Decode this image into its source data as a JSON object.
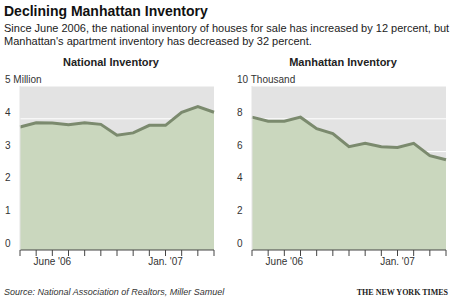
{
  "title": "Declining Manhattan Inventory",
  "subtitle": "Since June 2006, the national inventory of houses for sale has increased by 12 percent, but Manhattan's apartment inventory has decreased by 32 percent.",
  "source": "Source: National Association of Realtors, Miller Samuel",
  "credit": "THE NEW YORK TIMES",
  "chart_data": [
    {
      "type": "area",
      "title": "National Inventory",
      "categories": [
        null,
        null,
        "June '06",
        null,
        null,
        null,
        null,
        null,
        null,
        "Jan. '07",
        null,
        null,
        null
      ],
      "values": [
        3.75,
        3.88,
        3.87,
        3.82,
        3.88,
        3.83,
        3.5,
        3.57,
        3.8,
        3.8,
        4.2,
        4.37,
        4.2
      ],
      "color": "#7b8a6e",
      "ylim": [
        0,
        5
      ],
      "yticks": [
        0,
        1,
        2,
        3,
        4,
        {
          "value": 5,
          "label": "5 Million"
        }
      ],
      "grid": true
    },
    {
      "type": "area",
      "title": "Manhattan Inventory",
      "categories": [
        null,
        null,
        "June '06",
        null,
        null,
        null,
        null,
        null,
        null,
        "Jan. '07",
        null,
        null,
        null
      ],
      "values": [
        8.1,
        7.85,
        7.85,
        8.1,
        7.4,
        7.1,
        6.3,
        6.5,
        6.3,
        6.25,
        6.5,
        5.75,
        5.5
      ],
      "color": "#7b8a6e",
      "ylim": [
        0,
        10
      ],
      "yticks": [
        0,
        2,
        4,
        6,
        8,
        {
          "value": 10,
          "label": "10 Thousand"
        }
      ],
      "grid": true
    }
  ]
}
